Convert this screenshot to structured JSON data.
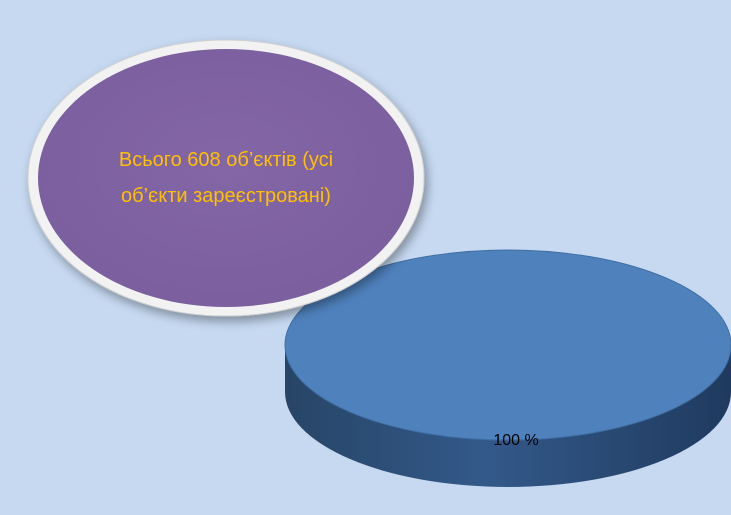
{
  "chart_data": {
    "type": "pie",
    "title": "",
    "categories": [
      ""
    ],
    "values": [
      100
    ],
    "data_labels": [
      "100 %"
    ],
    "colors": {
      "slice_top": "#4f81bd",
      "slice_side": "#2e4f78",
      "background": "#c6d9f1",
      "callout_fill": "#8064a2",
      "callout_text": "#ffc000"
    },
    "legend": "none",
    "grid": false
  },
  "callout": {
    "text": "Всього 608 об’єктів (усі об’єкти зареєстровані)"
  }
}
